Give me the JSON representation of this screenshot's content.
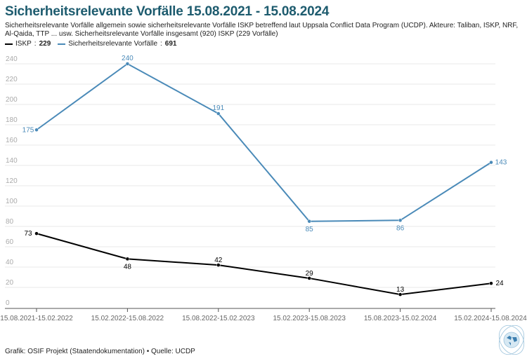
{
  "title": "Sicherheitsrelevante Vorfälle 15.08.2021 - 15.08.2024",
  "subtitle": "Sicherheitsrelevante Vorfälle allgemein sowie sicherheitsrelevante Vorfälle ISKP betreffend laut Uppsala Conflict Data Program (UCDP). Akteure: Taliban, ISKP, NRF, Al-Qaida, TTP ... usw. Sicherheitsrelevante Vorfälle insgesamt (920) ISKP (229 Vorfälle)",
  "legend": [
    {
      "name": "ISKP",
      "total": "229",
      "color": "#000000"
    },
    {
      "name": "Sicherheitsrelevante Vorfälle",
      "total": "691",
      "color": "#4a8ab8"
    }
  ],
  "footer": "Grafik: OSIF Projekt (Staatendokumentation)  • Quelle: UCDP",
  "logo": "globe-logo-icon",
  "chart_data": {
    "type": "line",
    "categories": [
      "15.08.2021-15.02.2022",
      "15.02.2022-15.08.2022",
      "15.08.2022-15.02.2023",
      "15.02.2023-15.08.2023",
      "15.08.2023-15.02.2024",
      "15.02.2024-15.08.2024"
    ],
    "series": [
      {
        "name": "ISKP",
        "color": "#000000",
        "values": [
          73,
          48,
          42,
          29,
          13,
          24
        ]
      },
      {
        "name": "Sicherheitsrelevante Vorfälle",
        "color": "#4a8ab8",
        "values": [
          175,
          240,
          191,
          85,
          86,
          143
        ]
      }
    ],
    "yticks": [
      0,
      20,
      40,
      60,
      80,
      100,
      120,
      140,
      160,
      180,
      200,
      220,
      240
    ],
    "ylim": [
      0,
      240
    ],
    "grid": true,
    "legend_position": "top-left"
  }
}
